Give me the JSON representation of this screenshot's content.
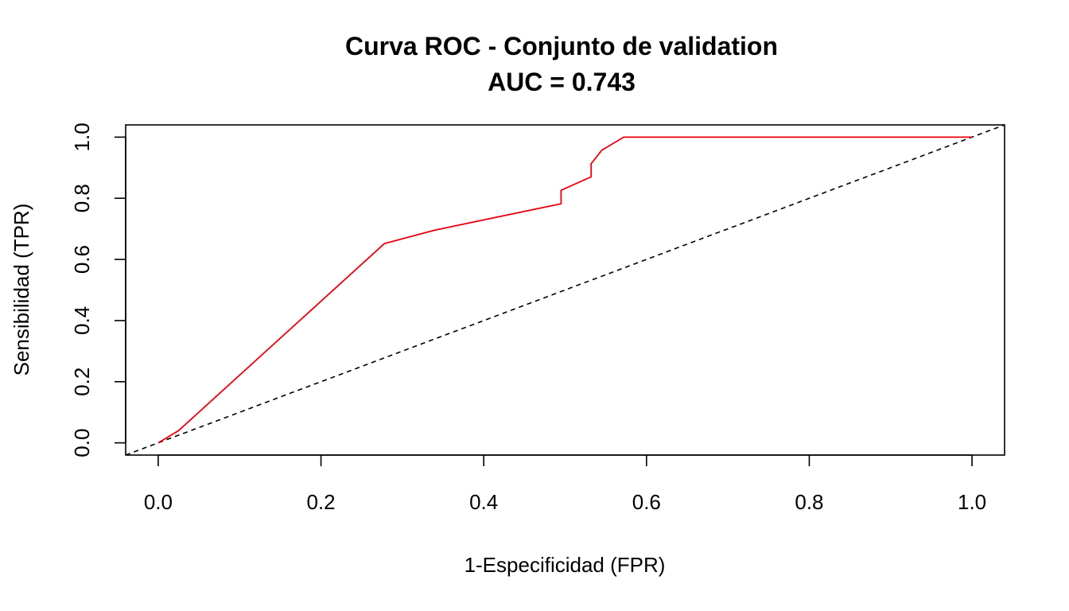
{
  "chart_data": {
    "type": "line",
    "title": "Curva ROC - Conjunto de validation",
    "subtitle": "AUC = 0.743",
    "xlabel": "1-Especificidad (FPR)",
    "ylabel": "Sensibilidad (TPR)",
    "xlim": [
      -0.04,
      1.04
    ],
    "ylim": [
      -0.04,
      1.04
    ],
    "x_ticks": [
      0.0,
      0.2,
      0.4,
      0.6,
      0.8,
      1.0
    ],
    "y_ticks": [
      0.0,
      0.2,
      0.4,
      0.6,
      0.8,
      1.0
    ],
    "x_tick_labels": [
      "0.0",
      "0.2",
      "0.4",
      "0.6",
      "0.8",
      "1.0"
    ],
    "y_tick_labels": [
      "0.0",
      "0.2",
      "0.4",
      "0.6",
      "0.8",
      "1.0"
    ],
    "grid": false,
    "series": [
      {
        "color": "#e8000b",
        "x": [
          0.0,
          0.025,
          0.278,
          0.34,
          0.495,
          0.495,
          0.532,
          0.532,
          0.545,
          0.572,
          1.0
        ],
        "y": [
          0.0,
          0.04,
          0.652,
          0.696,
          0.782,
          0.826,
          0.87,
          0.913,
          0.957,
          1.0,
          1.0
        ]
      }
    ],
    "reference_line": {
      "style": "dashed",
      "color": "#000000",
      "x": [
        -0.04,
        1.04
      ],
      "y": [
        -0.04,
        1.04
      ]
    }
  }
}
